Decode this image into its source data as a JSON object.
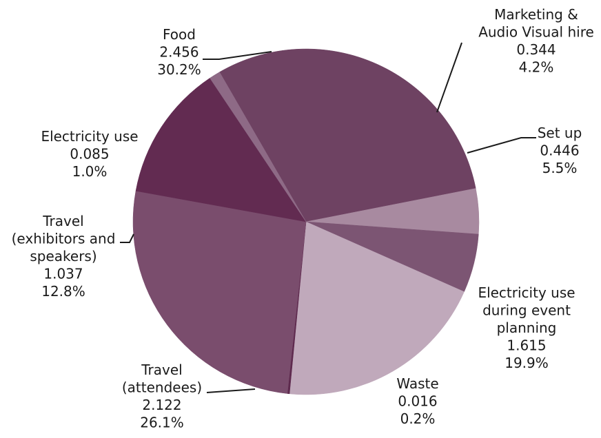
{
  "chart_data": {
    "type": "pie",
    "title": "",
    "slices": [
      {
        "label_lines": [
          "Food"
        ],
        "value": "2.456",
        "percent": "30.2%",
        "numeric": 2.456,
        "color": "#6e4262"
      },
      {
        "label_lines": [
          "Marketing &",
          "Audio Visual hire"
        ],
        "value": "0.344",
        "percent": "4.2%",
        "numeric": 0.344,
        "color": "#a88aa0"
      },
      {
        "label_lines": [
          "Set up"
        ],
        "value": "0.446",
        "percent": "5.5%",
        "numeric": 0.446,
        "color": "#7c5573"
      },
      {
        "label_lines": [
          "Electricity use",
          "during event",
          "planning"
        ],
        "value": "1.615",
        "percent": "19.9%",
        "numeric": 1.615,
        "color": "#c0a9bb"
      },
      {
        "label_lines": [
          "Waste"
        ],
        "value": "0.016",
        "percent": "0.2%",
        "numeric": 0.016,
        "color": "#5e2a4e"
      },
      {
        "label_lines": [
          "Travel",
          "(attendees)"
        ],
        "value": "2.122",
        "percent": "26.1%",
        "numeric": 2.122,
        "color": "#7a4d6d"
      },
      {
        "label_lines": [
          "Travel",
          "(exhibitors and",
          "speakers)"
        ],
        "value": "1.037",
        "percent": "12.8%",
        "numeric": 1.037,
        "color": "#622b51"
      },
      {
        "label_lines": [
          "Electricity use"
        ],
        "value": "0.085",
        "percent": "1.0%",
        "numeric": 0.085,
        "color": "#8e6a86"
      }
    ],
    "start_angle_deg": -30,
    "direction": "clockwise",
    "legend": "none"
  }
}
